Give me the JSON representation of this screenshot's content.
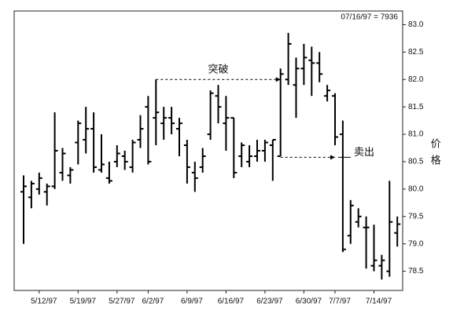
{
  "chart_data": {
    "type": "ohlc",
    "header": "07/16/97 = 7936",
    "y_label": "价格",
    "categories": [
      null,
      null,
      "5/12/97",
      null,
      null,
      null,
      null,
      "5/19/97",
      null,
      null,
      null,
      null,
      "5/27/97",
      null,
      null,
      null,
      "6/2/97",
      null,
      null,
      null,
      null,
      "6/9/97",
      null,
      null,
      null,
      null,
      "6/16/97",
      null,
      null,
      null,
      null,
      "6/23/97",
      null,
      null,
      null,
      null,
      "6/30/97",
      null,
      null,
      null,
      "7/7/97",
      null,
      null,
      null,
      null,
      "7/14/97",
      null,
      null,
      null
    ],
    "open": [
      79.95,
      79.85,
      80.0,
      79.95,
      80.05,
      80.3,
      80.25,
      80.85,
      80.9,
      81.1,
      80.35,
      80.2,
      80.5,
      80.6,
      80.4,
      80.9,
      81.5,
      81.3,
      81.2,
      81.3,
      81.1,
      80.8,
      80.3,
      80.4,
      81.0,
      81.7,
      81.2,
      81.3,
      80.6,
      80.5,
      80.6,
      80.7,
      80.8,
      80.6,
      82.0,
      81.9,
      82.2,
      82.35,
      82.3,
      81.7,
      81.7,
      81.0,
      79.15,
      79.4,
      79.3,
      78.6,
      78.6,
      78.5,
      79.2
    ],
    "high": [
      80.25,
      80.15,
      80.3,
      80.1,
      81.4,
      80.75,
      80.4,
      81.25,
      81.5,
      81.4,
      81.0,
      80.5,
      80.8,
      80.7,
      80.9,
      81.35,
      81.7,
      82.0,
      81.5,
      81.5,
      81.3,
      80.9,
      80.5,
      80.75,
      81.8,
      81.9,
      81.7,
      81.3,
      80.85,
      80.8,
      80.9,
      80.9,
      80.9,
      82.2,
      82.85,
      82.4,
      82.65,
      82.6,
      82.5,
      81.9,
      81.75,
      81.25,
      79.8,
      79.65,
      79.5,
      79.35,
      78.8,
      80.15,
      79.5
    ],
    "low": [
      79.0,
      79.65,
      79.9,
      79.7,
      80.0,
      80.15,
      80.1,
      80.45,
      80.65,
      80.3,
      80.3,
      80.1,
      80.4,
      80.35,
      80.3,
      80.75,
      80.45,
      80.8,
      80.9,
      81.0,
      80.6,
      80.1,
      79.95,
      80.3,
      80.9,
      81.2,
      80.7,
      80.2,
      80.4,
      80.4,
      80.5,
      80.5,
      80.15,
      80.6,
      81.9,
      81.3,
      81.9,
      81.7,
      81.95,
      81.6,
      80.8,
      78.85,
      79.0,
      79.3,
      78.55,
      78.5,
      78.35,
      78.4,
      78.95
    ],
    "close": [
      80.05,
      80.1,
      80.2,
      80.05,
      80.7,
      80.65,
      80.35,
      81.2,
      81.1,
      80.4,
      80.45,
      80.15,
      80.65,
      80.5,
      80.85,
      81.1,
      80.5,
      81.4,
      81.3,
      81.2,
      81.2,
      80.4,
      80.2,
      80.6,
      81.75,
      81.5,
      81.3,
      80.3,
      80.8,
      80.6,
      80.7,
      80.85,
      80.9,
      82.1,
      82.65,
      82.2,
      82.4,
      82.3,
      82.1,
      81.8,
      80.95,
      78.9,
      79.7,
      79.5,
      79.3,
      78.7,
      78.7,
      79.4,
      79.36
    ],
    "annotations": [
      {
        "text": "突破",
        "value": 82.0
      },
      {
        "text": "卖出",
        "value": 80.58
      }
    ],
    "ylim": [
      78.15,
      83.25
    ],
    "yticks": [
      78.5,
      {
        "value": 79,
        "label": "79.0"
      },
      79.5,
      {
        "value": 80,
        "label": "80.0"
      },
      80.5,
      {
        "value": 81,
        "label": "81.0"
      },
      81.5,
      {
        "value": 82,
        "label": "82.0"
      },
      82.5,
      {
        "value": 83,
        "label": "83.0"
      }
    ],
    "color": "#000000"
  }
}
